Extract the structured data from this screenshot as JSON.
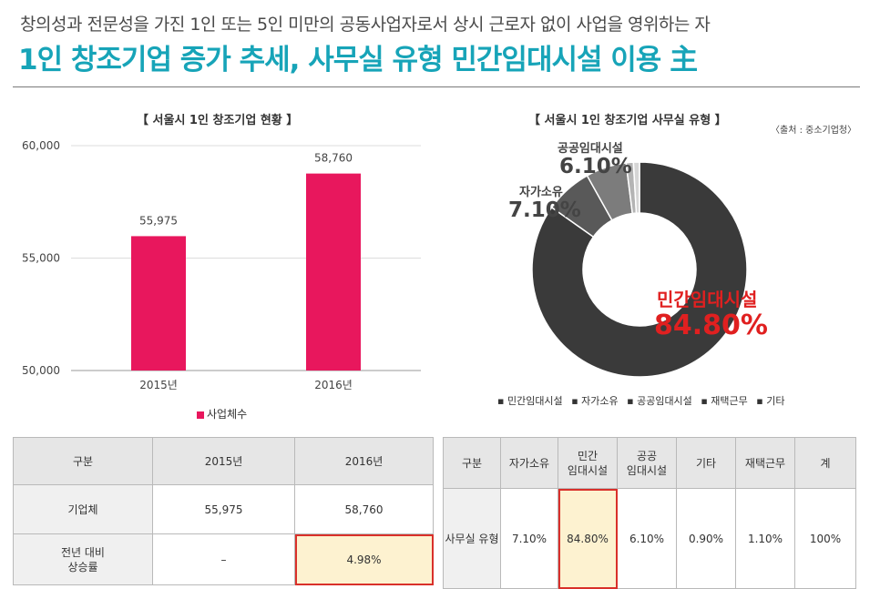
{
  "header": {
    "subtitle": "창의성과 전문성을 가진 1인 또는 5인 미만의 공동사업자로서 상시 근로자 없이 사업을 영위하는 자",
    "title": "1인 창조기업 증가 추세, 사무실 유형 민간임대시설 이용 主"
  },
  "source": "〈출처 : 중소기업청〉",
  "colors": {
    "title": "#17a4b8",
    "bar": "#e8175d",
    "highlight_border": "#d9302a",
    "highlight_fill": "#fdf2d0",
    "accent_red": "#e02020"
  },
  "chart_data": [
    {
      "type": "bar",
      "title": "【 서울시 1인 창조기업 현황 】",
      "categories": [
        "2015년",
        "2016년"
      ],
      "series": [
        {
          "name": "사업체수",
          "values": [
            55975,
            58760
          ],
          "labels": [
            "55,975",
            "58,760"
          ]
        }
      ],
      "ylim": [
        50000,
        60000
      ],
      "yticks": [
        50000,
        55000,
        60000
      ],
      "ytick_labels": [
        "50,000",
        "55,000",
        "60,000"
      ],
      "grid": true,
      "legend": "bottom"
    },
    {
      "type": "pie",
      "donut": true,
      "title": "【 서울시 1인 창조기업 사무실 유형 】",
      "slices": [
        {
          "label": "민간임대시설",
          "value": 84.8,
          "text": "84.80%",
          "color": "#3a3a3a"
        },
        {
          "label": "자가소유",
          "value": 7.1,
          "text": "7.10%",
          "color": "#595959"
        },
        {
          "label": "공공임대시설",
          "value": 6.1,
          "text": "6.10%",
          "color": "#7c7c7c"
        },
        {
          "label": "재택근무",
          "value": 1.1,
          "text": "",
          "color": "#b4b4b4"
        },
        {
          "label": "기타",
          "value": 0.9,
          "text": "",
          "color": "#d6d6d6"
        }
      ],
      "legend": "bottom"
    }
  ],
  "table1": {
    "headers": [
      "구분",
      "2015년",
      "2016년"
    ],
    "rows": [
      [
        "기업체",
        "55,975",
        "58,760"
      ],
      [
        "전년 대비\n상승률",
        "–",
        "4.98%"
      ]
    ]
  },
  "table2": {
    "headers": [
      "구분",
      "자가소유",
      "민간\n임대시설",
      "공공\n임대시설",
      "기타",
      "재택근무",
      "계"
    ],
    "row": [
      "사무실 유형",
      "7.10%",
      "84.80%",
      "6.10%",
      "0.90%",
      "1.10%",
      "100%"
    ]
  }
}
